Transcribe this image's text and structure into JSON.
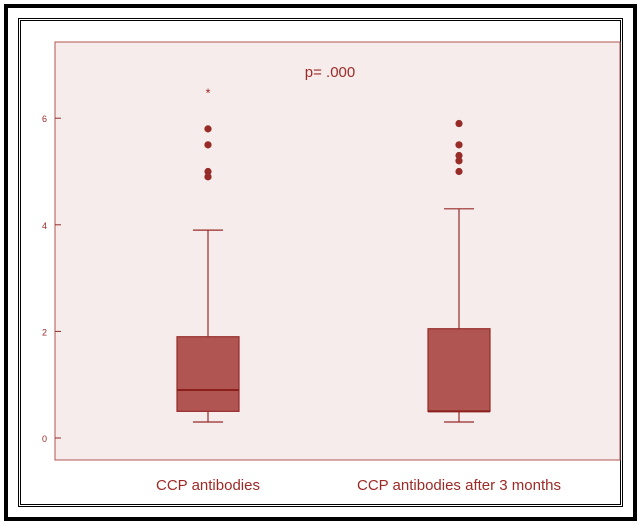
{
  "chart_data": {
    "type": "boxplot",
    "annotation": "p= .000",
    "categories": [
      "CCP antibodies",
      "CCP antibodies after 3 months"
    ],
    "y_ticks": [
      0,
      2,
      4,
      6
    ],
    "ylim": [
      -0.2,
      7.3
    ],
    "grid": false,
    "boxes": [
      {
        "label": "CCP antibodies",
        "min": 0.3,
        "q1": 0.5,
        "median": 0.9,
        "q3": 1.9,
        "max": 3.9,
        "outliers": [
          4.9,
          5.0,
          5.5,
          5.8
        ],
        "extremes": [
          6.5
        ]
      },
      {
        "label": "CCP antibodies after 3 months",
        "min": 0.3,
        "q1": 0.5,
        "median": 0.5,
        "q3": 2.05,
        "max": 4.3,
        "outliers": [
          5.0,
          5.2,
          5.3,
          5.5,
          5.9
        ],
        "extremes": []
      }
    ],
    "colors": {
      "plot_background": "#f7ecec",
      "box_fill": "#b05552",
      "box_stroke": "#962b28",
      "text": "#9c2a26"
    }
  }
}
